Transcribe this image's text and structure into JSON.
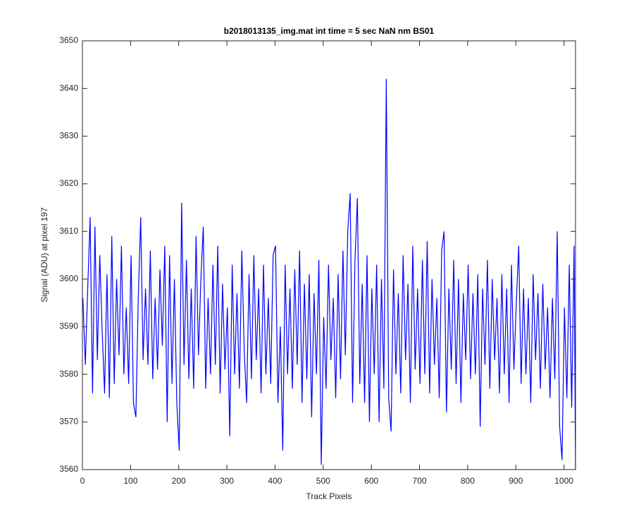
{
  "chart_data": {
    "type": "line",
    "title": "b2018013135_img.mat int time = 5 sec  NaN nm BS01",
    "xlabel": "Track Pixels",
    "ylabel": "Signal (ADU) at pixel 197",
    "color": "#0000ff",
    "xlim": [
      0,
      1024
    ],
    "ylim": [
      3560,
      3650
    ],
    "xticks": [
      0,
      100,
      200,
      300,
      400,
      500,
      600,
      700,
      800,
      900,
      1000
    ],
    "yticks": [
      3560,
      3570,
      3580,
      3590,
      3600,
      3610,
      3620,
      3630,
      3640,
      3650
    ],
    "grid": false,
    "x": [
      1,
      6,
      11,
      16,
      21,
      26,
      31,
      36,
      41,
      46,
      51,
      56,
      61,
      66,
      71,
      76,
      81,
      86,
      91,
      96,
      101,
      106,
      111,
      116,
      121,
      126,
      131,
      136,
      141,
      146,
      151,
      156,
      161,
      166,
      171,
      176,
      181,
      186,
      191,
      196,
      201,
      206,
      211,
      216,
      221,
      226,
      231,
      236,
      241,
      246,
      251,
      256,
      261,
      266,
      271,
      276,
      281,
      286,
      291,
      296,
      301,
      306,
      311,
      316,
      321,
      326,
      331,
      336,
      341,
      346,
      351,
      356,
      361,
      366,
      371,
      376,
      381,
      386,
      391,
      396,
      401,
      406,
      411,
      416,
      421,
      426,
      431,
      436,
      441,
      446,
      451,
      456,
      461,
      466,
      471,
      476,
      481,
      486,
      491,
      496,
      501,
      506,
      511,
      516,
      521,
      526,
      531,
      536,
      541,
      546,
      551,
      556,
      561,
      566,
      571,
      576,
      581,
      586,
      591,
      596,
      601,
      606,
      611,
      616,
      621,
      626,
      631,
      636,
      641,
      646,
      651,
      656,
      661,
      666,
      671,
      676,
      681,
      686,
      691,
      696,
      701,
      706,
      711,
      716,
      721,
      726,
      731,
      736,
      741,
      746,
      751,
      756,
      761,
      766,
      771,
      776,
      781,
      786,
      791,
      796,
      801,
      806,
      811,
      816,
      821,
      826,
      831,
      836,
      841,
      846,
      851,
      856,
      861,
      866,
      871,
      876,
      881,
      886,
      891,
      896,
      901,
      906,
      911,
      916,
      921,
      926,
      931,
      936,
      941,
      946,
      951,
      956,
      961,
      966,
      971,
      976,
      981,
      986,
      991,
      996,
      1001,
      1006,
      1011,
      1016,
      1021,
      1024
    ],
    "values": [
      3596,
      3582,
      3598,
      3613,
      3576,
      3611,
      3583,
      3605,
      3589,
      3576,
      3601,
      3575,
      3609,
      3578,
      3600,
      3584,
      3607,
      3580,
      3594,
      3578,
      3605,
      3574,
      3571,
      3596,
      3613,
      3583,
      3598,
      3582,
      3606,
      3579,
      3596,
      3581,
      3602,
      3586,
      3607,
      3570,
      3605,
      3578,
      3600,
      3574,
      3564,
      3616,
      3582,
      3604,
      3579,
      3598,
      3577,
      3609,
      3584,
      3600,
      3611,
      3577,
      3596,
      3580,
      3603,
      3582,
      3607,
      3576,
      3599,
      3581,
      3594,
      3567,
      3603,
      3580,
      3597,
      3577,
      3606,
      3585,
      3574,
      3601,
      3579,
      3605,
      3583,
      3598,
      3576,
      3603,
      3580,
      3596,
      3578,
      3605,
      3607,
      3574,
      3590,
      3564,
      3603,
      3580,
      3598,
      3577,
      3602,
      3582,
      3606,
      3574,
      3599,
      3579,
      3601,
      3571,
      3597,
      3580,
      3604,
      3561,
      3592,
      3577,
      3603,
      3583,
      3596,
      3575,
      3601,
      3579,
      3606,
      3584,
      3610,
      3618,
      3574,
      3604,
      3617,
      3578,
      3599,
      3574,
      3605,
      3570,
      3598,
      3580,
      3603,
      3570,
      3600,
      3577,
      3642,
      3575,
      3568,
      3602,
      3580,
      3597,
      3576,
      3605,
      3583,
      3599,
      3574,
      3607,
      3581,
      3598,
      3578,
      3604,
      3580,
      3608,
      3576,
      3600,
      3582,
      3596,
      3575,
      3606,
      3610,
      3572,
      3598,
      3581,
      3604,
      3578,
      3600,
      3574,
      3597,
      3583,
      3603,
      3579,
      3597,
      3580,
      3601,
      3569,
      3598,
      3582,
      3604,
      3577,
      3600,
      3583,
      3596,
      3576,
      3601,
      3580,
      3598,
      3574,
      3603,
      3581,
      3595,
      3607,
      3578,
      3598,
      3580,
      3596,
      3574,
      3601,
      3583,
      3597,
      3577,
      3599,
      3581,
      3594,
      3575,
      3596,
      3579,
      3610,
      3569,
      3562,
      3594,
      3575,
      3603,
      3573,
      3607,
      3560
    ]
  }
}
